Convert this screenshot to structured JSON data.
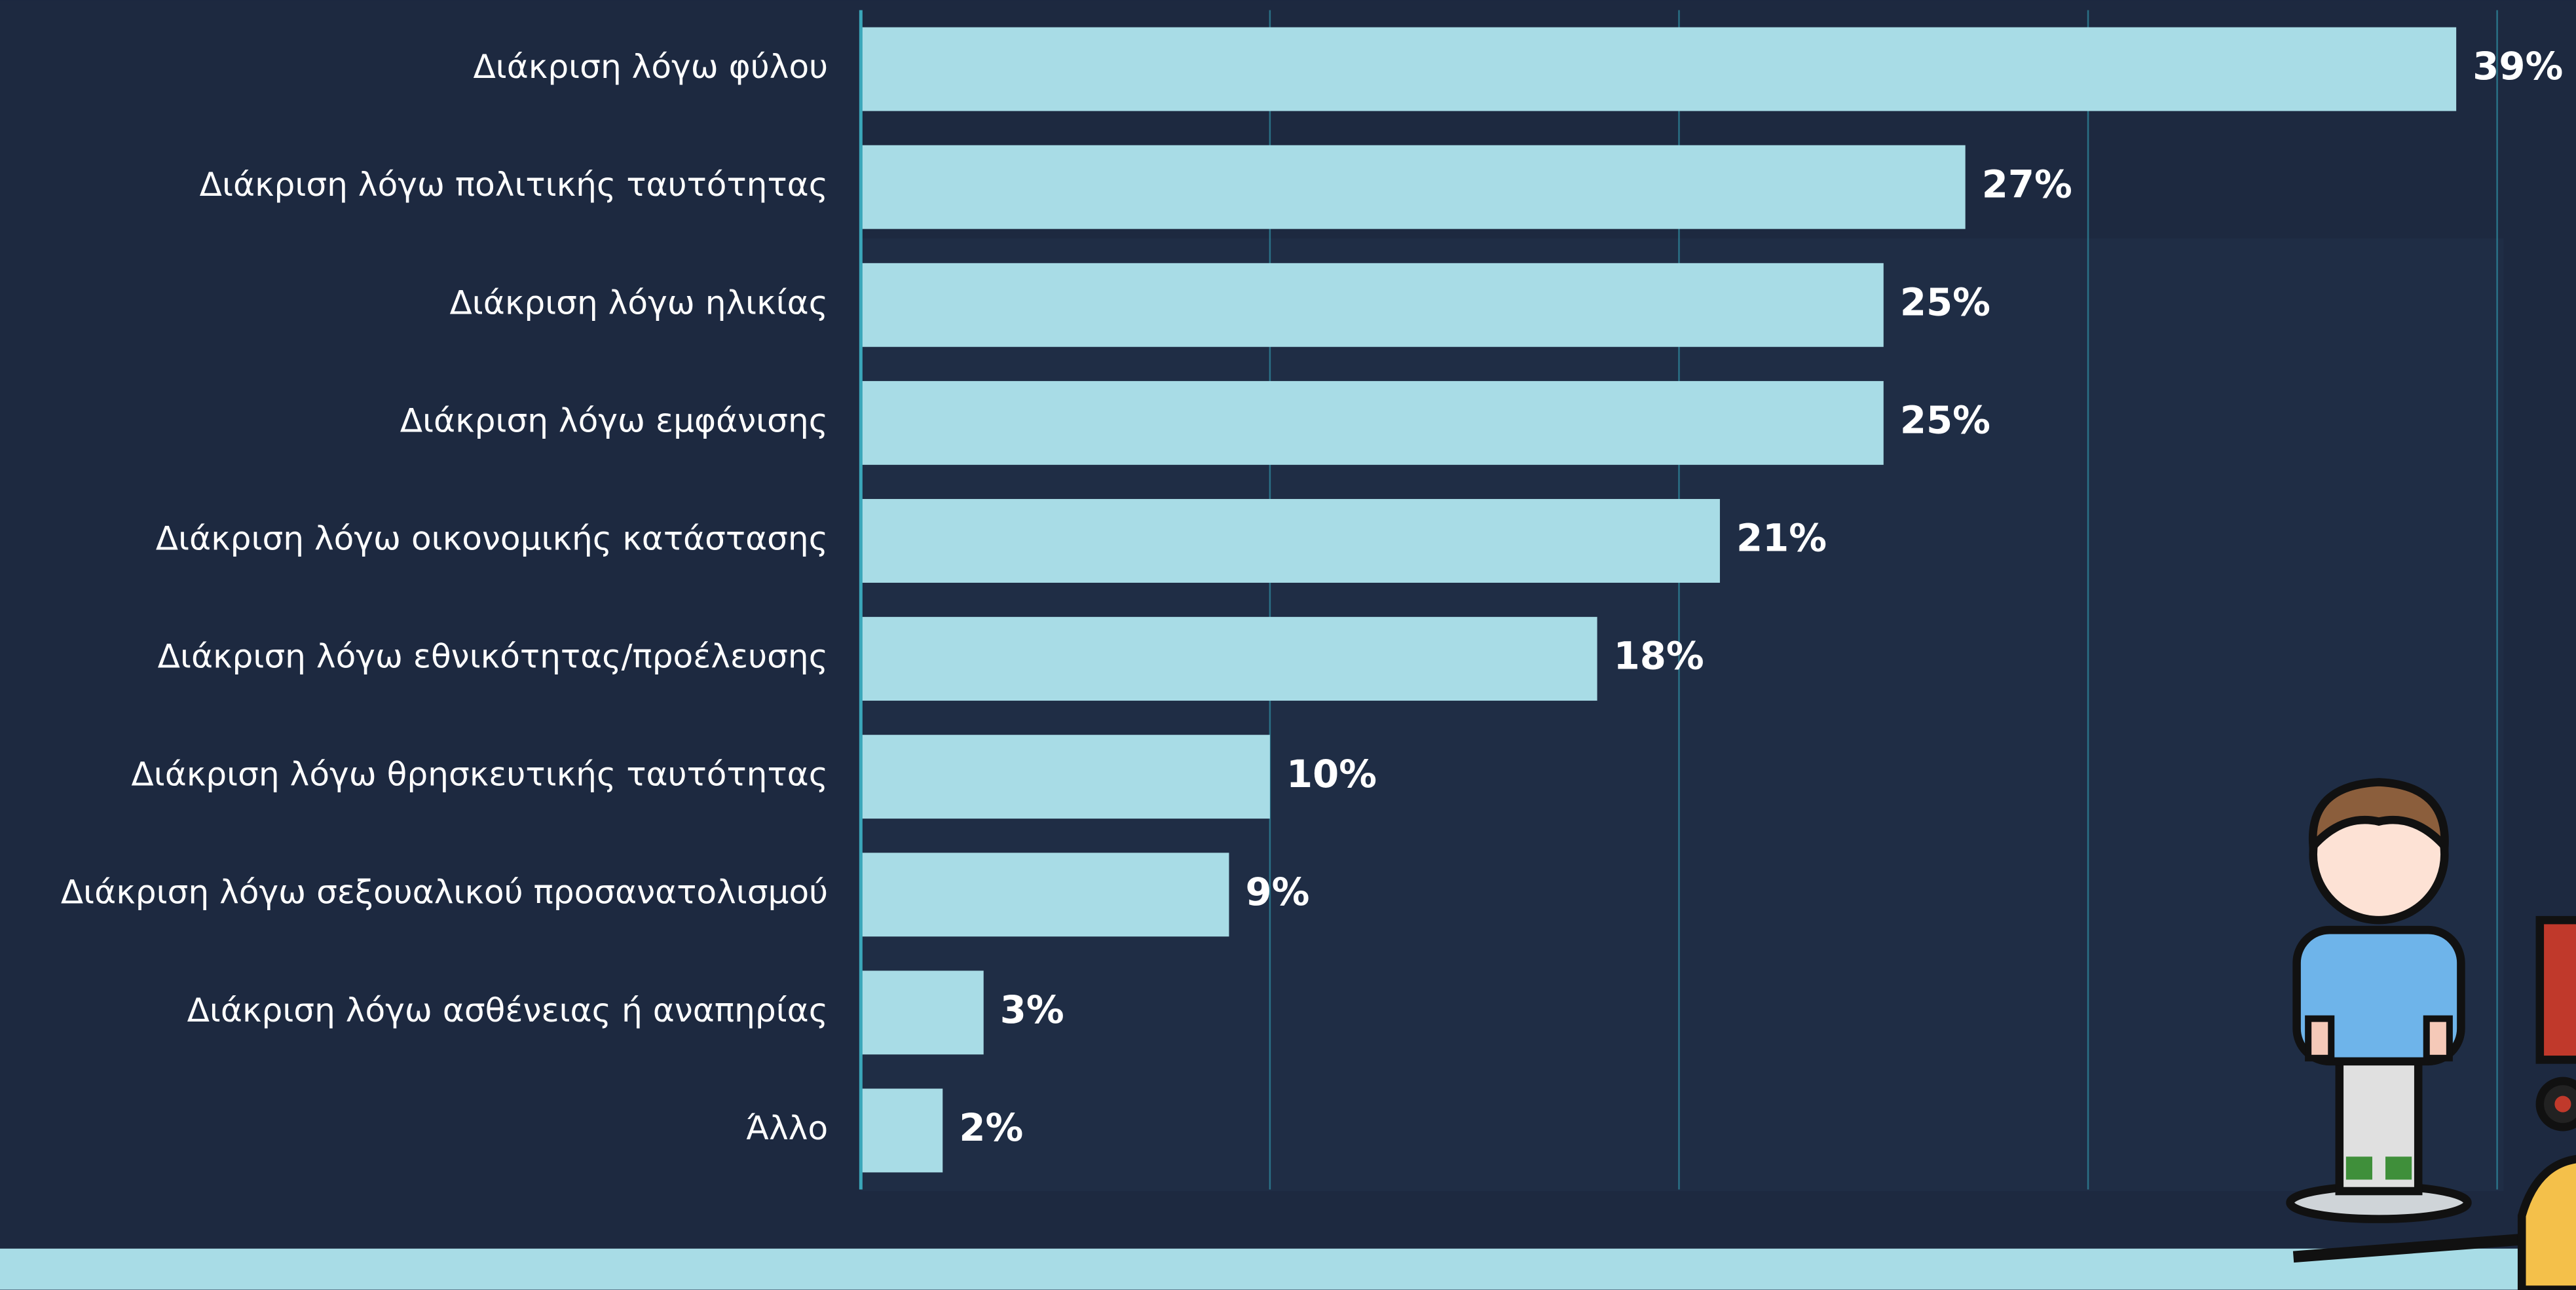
{
  "chart_data": {
    "type": "bar",
    "orientation": "horizontal",
    "categories": [
      "Διάκριση λόγω φύλου",
      "Διάκριση λόγω πολιτικής ταυτότητας",
      "Διάκριση λόγω ηλικίας",
      "Διάκριση λόγω εμφάνισης",
      "Διάκριση λόγω οικονομικής κατάστασης",
      "Διάκριση λόγω εθνικότητας/προέλευσης",
      "Διάκριση λόγω θρησκευτικής ταυτότητας",
      "Διάκριση λόγω σεξουαλικού προσανατολισμού",
      "Διάκριση λόγω ασθένειας ή αναπηρίας",
      "Άλλο"
    ],
    "values": [
      39,
      27,
      25,
      25,
      21,
      18,
      10,
      9,
      3,
      2
    ],
    "value_labels": [
      "39%",
      "27%",
      "25%",
      "25%",
      "21%",
      "18%",
      "10%",
      "9%",
      "3%",
      "2%"
    ],
    "color": "#a8dce6",
    "xlim": [
      0,
      40
    ],
    "xticks": [
      0,
      10,
      20,
      30,
      40
    ],
    "grid": true
  }
}
